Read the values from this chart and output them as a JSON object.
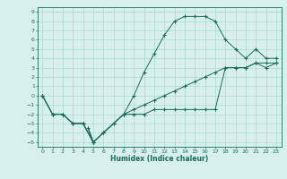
{
  "xlabel": "Humidex (Indice chaleur)",
  "bg_color": "#d7f0eb",
  "grid_color": "#a8d8cc",
  "line_color": "#1a6b5a",
  "xlim": [
    -0.5,
    23.5
  ],
  "ylim": [
    -5.5,
    9.5
  ],
  "xticks": [
    0,
    1,
    2,
    3,
    4,
    5,
    6,
    7,
    8,
    9,
    10,
    11,
    12,
    13,
    14,
    15,
    16,
    17,
    18,
    19,
    20,
    21,
    22,
    23
  ],
  "yticks": [
    -5,
    -4,
    -3,
    -2,
    -1,
    0,
    1,
    2,
    3,
    4,
    5,
    6,
    7,
    8,
    9
  ],
  "curve1_x": [
    0,
    1,
    2,
    3,
    4,
    5,
    4.5,
    5,
    6,
    7,
    8,
    9,
    10,
    11,
    12,
    13,
    14,
    15,
    16,
    17,
    18,
    19,
    20,
    21,
    22,
    23
  ],
  "curve1_y": [
    0,
    -2,
    -2,
    -3,
    -3,
    -5,
    -3.5,
    -5,
    -4,
    -3,
    -2,
    0,
    2.5,
    4.5,
    6.5,
    8,
    8.5,
    8.5,
    8.5,
    8,
    6,
    5,
    4,
    5,
    4,
    4
  ],
  "curve2_x": [
    0,
    1,
    2,
    3,
    4,
    5,
    6,
    7,
    8,
    9,
    10,
    11,
    12,
    13,
    14,
    15,
    16,
    17,
    18,
    19,
    20,
    21,
    22,
    23
  ],
  "curve2_y": [
    0,
    -2,
    -2,
    -3,
    -3,
    -5,
    -4,
    -3,
    -2,
    -2,
    -2,
    -1.5,
    -1.5,
    -1.5,
    -1.5,
    -1.5,
    -1.5,
    -1.5,
    3,
    3,
    3,
    3.5,
    3,
    3.5
  ],
  "curve3_x": [
    0,
    1,
    2,
    3,
    4,
    5,
    6,
    7,
    8,
    9,
    10,
    11,
    12,
    13,
    14,
    15,
    16,
    17,
    18,
    19,
    20,
    21,
    22,
    23
  ],
  "curve3_y": [
    0,
    -2,
    -2,
    -3,
    -3,
    -5,
    -4,
    -3,
    -2,
    -1.5,
    -1,
    -0.5,
    0,
    0.5,
    1,
    1.5,
    2,
    2.5,
    3,
    3,
    3,
    3.5,
    3.5,
    3.5
  ]
}
